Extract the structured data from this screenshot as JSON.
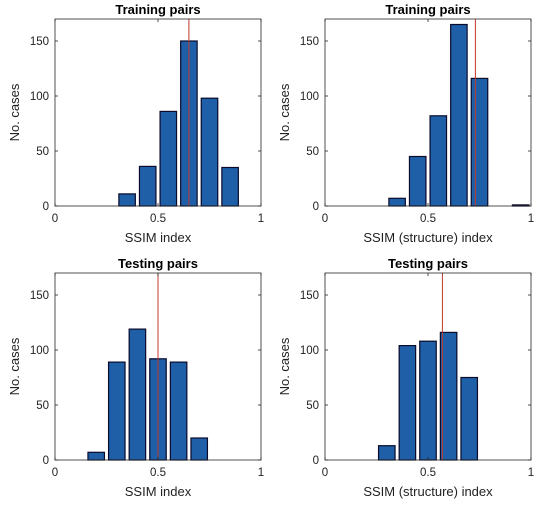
{
  "chart_data": [
    {
      "type": "bar",
      "title": "Training pairs",
      "xlabel": "SSIM index",
      "ylabel": "No. cases",
      "x": [
        0.35,
        0.45,
        0.55,
        0.65,
        0.75,
        0.85
      ],
      "values": [
        11,
        36,
        86,
        150,
        98,
        35
      ],
      "xlim": [
        0,
        1
      ],
      "ylim": [
        0,
        170
      ],
      "xticks": [
        "0",
        "0.5",
        "1"
      ],
      "yticks": [
        "0",
        "50",
        "100",
        "150"
      ],
      "reference_line": 0.65,
      "bar_color": "#1f5fa8",
      "line_color": "#c0392b",
      "grid": false
    },
    {
      "type": "bar",
      "title": "Training pairs",
      "xlabel": "SSIM (structure) index",
      "ylabel": "No. cases",
      "x": [
        0.35,
        0.45,
        0.55,
        0.65,
        0.75,
        0.85,
        0.95
      ],
      "values": [
        7,
        45,
        82,
        165,
        116,
        0,
        1
      ],
      "xlim": [
        0,
        1
      ],
      "ylim": [
        0,
        170
      ],
      "xticks": [
        "0",
        "0.5",
        "1"
      ],
      "yticks": [
        "0",
        "50",
        "100",
        "150"
      ],
      "reference_line": 0.73,
      "bar_color": "#1f5fa8",
      "line_color": "#c0392b",
      "grid": false
    },
    {
      "type": "bar",
      "title": "Testing pairs",
      "xlabel": "SSIM index",
      "ylabel": "No. cases",
      "x": [
        0.2,
        0.3,
        0.4,
        0.5,
        0.6,
        0.7
      ],
      "values": [
        7,
        89,
        119,
        92,
        89,
        20
      ],
      "xlim": [
        0,
        1
      ],
      "ylim": [
        0,
        170
      ],
      "xticks": [
        "0",
        "0.5",
        "1"
      ],
      "yticks": [
        "0",
        "50",
        "100",
        "150"
      ],
      "reference_line": 0.5,
      "bar_color": "#1f5fa8",
      "line_color": "#c0392b",
      "grid": false
    },
    {
      "type": "bar",
      "title": "Testing pairs",
      "xlabel": "SSIM (structure) index",
      "ylabel": "No. cases",
      "x": [
        0.3,
        0.4,
        0.5,
        0.6,
        0.7
      ],
      "values": [
        13,
        104,
        108,
        116,
        75
      ],
      "xlim": [
        0,
        1
      ],
      "ylim": [
        0,
        170
      ],
      "xticks": [
        "0",
        "0.5",
        "1"
      ],
      "yticks": [
        "0",
        "50",
        "100",
        "150"
      ],
      "reference_line": 0.57,
      "bar_color": "#1f5fa8",
      "line_color": "#c0392b",
      "grid": false
    }
  ]
}
